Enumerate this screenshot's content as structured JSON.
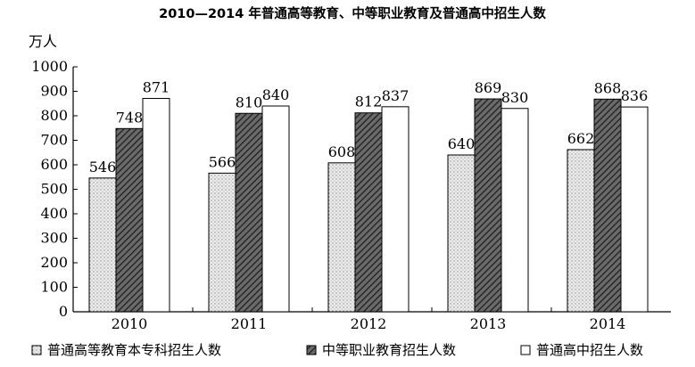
{
  "chart_data": {
    "type": "bar",
    "title": "2010—2014 年普通高等教育、中等职业教育及普通高中招生人数",
    "ylabel": "万人",
    "xlabel": "",
    "categories": [
      "2010",
      "2011",
      "2012",
      "2013",
      "2014"
    ],
    "series": [
      {
        "name": "普通高等教育本专科招生人数",
        "values": [
          546,
          566,
          608,
          640,
          662
        ],
        "fill": "dots"
      },
      {
        "name": "中等职业教育招生人数",
        "values": [
          748,
          810,
          812,
          869,
          868
        ],
        "fill": "hatch"
      },
      {
        "name": "普通高中招生人数",
        "values": [
          871,
          840,
          837,
          830,
          836
        ],
        "fill": "white"
      }
    ],
    "ylim": [
      0,
      1000
    ],
    "yticks": [
      0,
      100,
      200,
      300,
      400,
      500,
      600,
      700,
      800,
      900,
      1000
    ],
    "grid": false,
    "legend_position": "bottom"
  }
}
